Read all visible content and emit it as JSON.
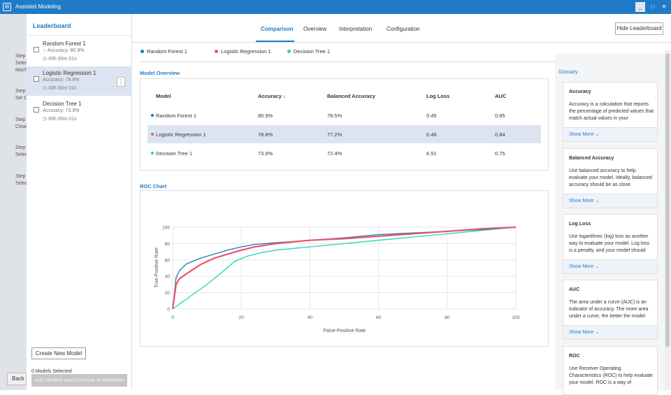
{
  "window": {
    "title": "Assisted Modeling",
    "min_label": "_",
    "max_label": "□",
    "close_label": "✕"
  },
  "background_steps": [
    {
      "label": "Step",
      "sub": "Selec",
      "sub2": "Mach"
    },
    {
      "label": "Step",
      "sub": "Set D",
      "sub2": ""
    },
    {
      "label": "Step",
      "sub": "Clear",
      "sub2": ""
    },
    {
      "label": "Step",
      "sub": "Selec",
      "sub2": ""
    },
    {
      "label": "Step",
      "sub": "Selec",
      "sub2": ""
    }
  ],
  "back_label": "Back",
  "leaderboard": {
    "title": "Leaderboard",
    "models": [
      {
        "name": "Random Forest 1",
        "accuracy": "Accuracy: 80.9%",
        "time": "00h 00m 01s"
      },
      {
        "name": "Logistic Regression 1",
        "accuracy": "Accuracy: 78.8%",
        "time": "00h 00m 01s"
      },
      {
        "name": "Decision Tree 1",
        "accuracy": "Accuracy: 73.9%",
        "time": "00h 00m 01s"
      }
    ],
    "create_label": "Create New Model",
    "selected_count": "0 Models Selected",
    "add_label": "Add Models and Continue to Workflow"
  },
  "tabs": [
    "Comparison",
    "Overview",
    "Interpretation",
    "Configuration"
  ],
  "hide_label": "Hide Leaderboard",
  "legend": [
    "Random Forest 1",
    "Logistic Regression 1",
    "Decision Tree 1"
  ],
  "colors": {
    "rf": "#1f77b4",
    "lr": "#e8566c",
    "dt": "#1fd6b6",
    "accent": "#1f7bc8"
  },
  "overview": {
    "title": "Model Overview",
    "headers": [
      "Model",
      "Accuracy",
      "Balanced Accuracy",
      "Log Loss",
      "AUC"
    ],
    "sort_icon": "↓",
    "rows": [
      [
        "Random Forest 1",
        "80.9%",
        "78.5%",
        "0.45",
        "0.85"
      ],
      [
        "Logistic Regression 1",
        "78.8%",
        "77.2%",
        "0.46",
        "0.84"
      ],
      [
        "Decision Tree 1",
        "73.9%",
        "72.4%",
        "6.51",
        "0.75"
      ]
    ]
  },
  "roc": {
    "title": "ROC Chart",
    "xlabel": "False-Positive Rate",
    "ylabel": "True-Positive Rate",
    "xticks": [
      "0",
      "20",
      "40",
      "60",
      "80",
      "100"
    ],
    "yticks": [
      "0",
      "20",
      "40",
      "60",
      "80",
      "100"
    ]
  },
  "chart_data": {
    "type": "line",
    "title": "ROC Chart",
    "xlabel": "False-Positive Rate",
    "ylabel": "True-Positive Rate",
    "xlim": [
      0,
      100
    ],
    "ylim": [
      0,
      100
    ],
    "series": [
      {
        "name": "Random Forest 1",
        "x": [
          0,
          1,
          2,
          4,
          8,
          12,
          16,
          20,
          24,
          30,
          40,
          50,
          60,
          70,
          80,
          90,
          100
        ],
        "y": [
          0,
          38,
          47,
          55,
          62,
          67,
          72,
          76,
          79,
          81,
          84,
          87,
          91,
          93,
          95,
          97,
          100
        ]
      },
      {
        "name": "Logistic Regression 1",
        "x": [
          0,
          1,
          2,
          4,
          8,
          12,
          16,
          20,
          24,
          30,
          40,
          50,
          60,
          70,
          80,
          90,
          100
        ],
        "y": [
          0,
          30,
          37,
          43,
          54,
          62,
          67,
          72,
          76,
          80,
          84,
          86,
          89,
          92,
          95,
          98,
          100
        ]
      },
      {
        "name": "Decision Tree 1",
        "x": [
          0,
          5,
          10,
          15,
          18,
          22,
          26,
          30,
          40,
          50,
          60,
          70,
          80,
          90,
          100
        ],
        "y": [
          0,
          15,
          30,
          47,
          58,
          65,
          69,
          72,
          76,
          80,
          84,
          88,
          92,
          96,
          100
        ]
      }
    ]
  },
  "glossary": {
    "title": "Glossary",
    "show_more": "Show More",
    "items": [
      {
        "title": "Accuracy",
        "body": "Accuracy is a calculation that reports the percentage of predicted values that match actual values in your"
      },
      {
        "title": "Balanced Accuracy",
        "body": "Use balanced accuracy to help evaluate your model. Ideally, balanced accuracy should be as close"
      },
      {
        "title": "Log Loss",
        "body": "Use logarithmic (log) loss as another way to evaluate your model. Log loss is a penalty, and your model should"
      },
      {
        "title": "AUC",
        "body": "The area under a curve (AUC) is an indicator of accuracy. The more area under a curve, the better the model."
      },
      {
        "title": "ROC",
        "body": "Use Receiver Operating Characteristics (ROC) to help evaluate your model. ROC is a way of"
      }
    ]
  }
}
